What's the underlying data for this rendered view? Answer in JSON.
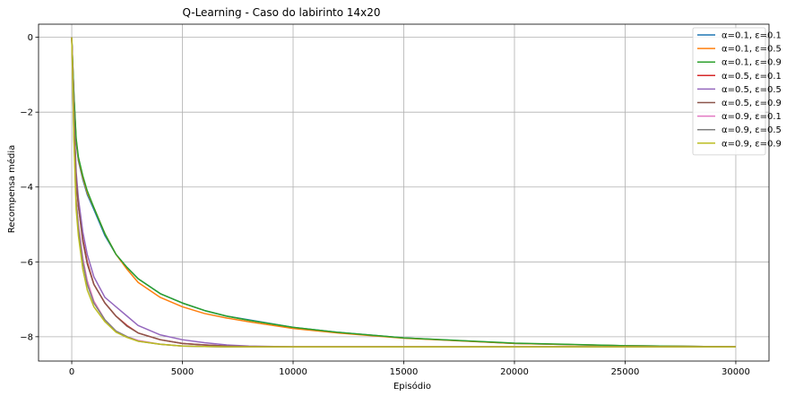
{
  "chart_data": {
    "type": "line",
    "title": "Q-Learning - Caso do labirinto 14x20",
    "xlabel": "Episódio",
    "ylabel": "Recompensa média",
    "xlim": [
      -1500,
      31500
    ],
    "ylim": [
      -8.65,
      0.35
    ],
    "xticks": [
      0,
      5000,
      10000,
      15000,
      20000,
      25000,
      30000
    ],
    "xtick_labels": [
      "0",
      "5000",
      "10000",
      "15000",
      "20000",
      "25000",
      "30000"
    ],
    "yticks": [
      0,
      -2,
      -4,
      -6,
      -8
    ],
    "ytick_labels": [
      "0",
      "−2",
      "−4",
      "−6",
      "−8"
    ],
    "grid": true,
    "legend_position": "top-right",
    "series": [
      {
        "name": "α=0.1, ε=0.1",
        "color": "#1f77b4",
        "x": [
          0,
          100,
          200,
          300,
          500,
          700,
          1000,
          1500,
          2000,
          2500,
          3000,
          4000,
          5000,
          6000,
          7000,
          8000,
          10000,
          12000,
          15000,
          20000,
          25000,
          30000
        ],
        "y": [
          0,
          -1.6,
          -2.8,
          -3.3,
          -3.8,
          -4.2,
          -4.6,
          -5.3,
          -5.8,
          -6.15,
          -6.45,
          -6.85,
          -7.1,
          -7.3,
          -7.45,
          -7.55,
          -7.75,
          -7.88,
          -8.03,
          -8.18,
          -8.24,
          -8.27
        ]
      },
      {
        "name": "α=0.1, ε=0.5",
        "color": "#ff7f0e",
        "x": [
          0,
          100,
          200,
          300,
          500,
          700,
          1000,
          1500,
          2000,
          2500,
          3000,
          4000,
          5000,
          6000,
          7000,
          8000,
          10000,
          12000,
          15000,
          20000,
          25000,
          30000
        ],
        "y": [
          0,
          -1.6,
          -2.75,
          -3.25,
          -3.75,
          -4.15,
          -4.55,
          -5.25,
          -5.8,
          -6.2,
          -6.55,
          -6.95,
          -7.2,
          -7.38,
          -7.5,
          -7.6,
          -7.78,
          -7.9,
          -8.04,
          -8.18,
          -8.24,
          -8.27
        ]
      },
      {
        "name": "α=0.1, ε=0.9",
        "color": "#2ca02c",
        "x": [
          0,
          100,
          200,
          300,
          500,
          700,
          1000,
          1500,
          2000,
          2500,
          3000,
          4000,
          5000,
          6000,
          7000,
          8000,
          10000,
          12000,
          15000,
          20000,
          25000,
          30000
        ],
        "y": [
          0,
          -1.55,
          -2.7,
          -3.2,
          -3.7,
          -4.1,
          -4.55,
          -5.25,
          -5.8,
          -6.15,
          -6.45,
          -6.85,
          -7.1,
          -7.3,
          -7.45,
          -7.56,
          -7.75,
          -7.88,
          -8.03,
          -8.17,
          -8.24,
          -8.27
        ]
      },
      {
        "name": "α=0.5, ε=0.1",
        "color": "#d62728",
        "x": [
          0,
          100,
          200,
          300,
          500,
          700,
          1000,
          1500,
          2000,
          2500,
          3000,
          4000,
          5000,
          6000,
          7000,
          8000,
          10000,
          12000,
          15000,
          20000,
          25000,
          30000
        ],
        "y": [
          0,
          -2.2,
          -3.8,
          -4.5,
          -5.4,
          -6.0,
          -6.6,
          -7.1,
          -7.45,
          -7.7,
          -7.9,
          -8.08,
          -8.18,
          -8.22,
          -8.25,
          -8.26,
          -8.27,
          -8.27,
          -8.27,
          -8.27,
          -8.27,
          -8.27
        ]
      },
      {
        "name": "α=0.5, ε=0.5",
        "color": "#9467bd",
        "x": [
          0,
          100,
          200,
          300,
          500,
          700,
          1000,
          1500,
          2000,
          2500,
          3000,
          4000,
          5000,
          6000,
          7000,
          8000,
          10000,
          12000,
          15000,
          20000,
          25000,
          30000
        ],
        "y": [
          0,
          -2.1,
          -3.6,
          -4.3,
          -5.2,
          -5.8,
          -6.4,
          -6.95,
          -7.2,
          -7.45,
          -7.7,
          -7.95,
          -8.08,
          -8.16,
          -8.22,
          -8.25,
          -8.27,
          -8.27,
          -8.27,
          -8.27,
          -8.27,
          -8.27
        ]
      },
      {
        "name": "α=0.5, ε=0.9",
        "color": "#8c564b",
        "x": [
          0,
          100,
          200,
          300,
          500,
          700,
          1000,
          1500,
          2000,
          2500,
          3000,
          4000,
          5000,
          6000,
          7000,
          8000,
          10000,
          12000,
          15000,
          20000,
          25000,
          30000
        ],
        "y": [
          0,
          -2.2,
          -3.8,
          -4.5,
          -5.45,
          -6.05,
          -6.6,
          -7.1,
          -7.45,
          -7.72,
          -7.9,
          -8.08,
          -8.18,
          -8.22,
          -8.25,
          -8.26,
          -8.27,
          -8.27,
          -8.27,
          -8.27,
          -8.27,
          -8.27
        ]
      },
      {
        "name": "α=0.9, ε=0.1",
        "color": "#e377c2",
        "x": [
          0,
          100,
          200,
          300,
          500,
          700,
          1000,
          1500,
          2000,
          2500,
          3000,
          4000,
          5000,
          6000,
          7000,
          8000,
          10000,
          12000,
          15000,
          20000,
          25000,
          30000
        ],
        "y": [
          0,
          -2.6,
          -4.3,
          -5.0,
          -5.9,
          -6.5,
          -7.05,
          -7.55,
          -7.85,
          -8.0,
          -8.1,
          -8.2,
          -8.25,
          -8.26,
          -8.27,
          -8.27,
          -8.27,
          -8.27,
          -8.27,
          -8.27,
          -8.27,
          -8.27
        ]
      },
      {
        "name": "α=0.9, ε=0.5",
        "color": "#7f7f7f",
        "x": [
          0,
          100,
          200,
          300,
          500,
          700,
          1000,
          1500,
          2000,
          2500,
          3000,
          4000,
          5000,
          6000,
          7000,
          8000,
          10000,
          12000,
          15000,
          20000,
          25000,
          30000
        ],
        "y": [
          0,
          -2.7,
          -4.4,
          -5.1,
          -6.0,
          -6.6,
          -7.1,
          -7.55,
          -7.85,
          -8.0,
          -8.12,
          -8.2,
          -8.25,
          -8.26,
          -8.27,
          -8.27,
          -8.27,
          -8.27,
          -8.27,
          -8.27,
          -8.27,
          -8.27
        ]
      },
      {
        "name": "α=0.9, ε=0.9",
        "color": "#bcbd22",
        "x": [
          0,
          100,
          200,
          300,
          500,
          700,
          1000,
          1500,
          2000,
          2500,
          3000,
          4000,
          5000,
          6000,
          7000,
          8000,
          10000,
          12000,
          15000,
          20000,
          25000,
          30000
        ],
        "y": [
          0,
          -2.8,
          -4.6,
          -5.3,
          -6.2,
          -6.75,
          -7.2,
          -7.6,
          -7.88,
          -8.02,
          -8.12,
          -8.2,
          -8.25,
          -8.26,
          -8.27,
          -8.27,
          -8.27,
          -8.27,
          -8.27,
          -8.27,
          -8.27,
          -8.27
        ]
      }
    ]
  }
}
